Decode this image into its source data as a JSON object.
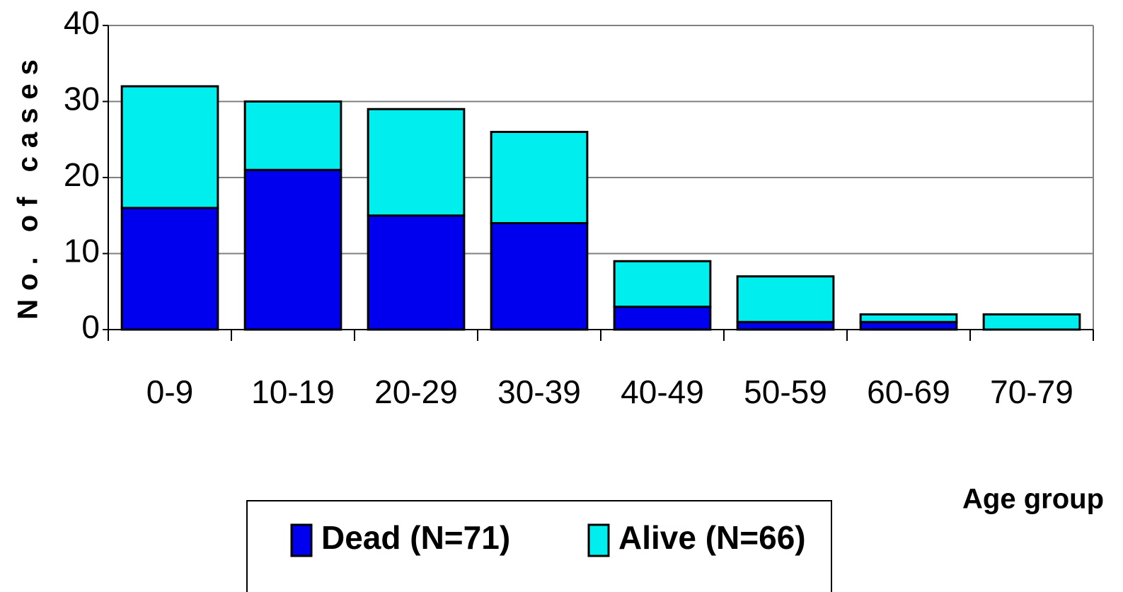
{
  "chart_data": {
    "type": "stacked_bar",
    "y_label": "No. of cases",
    "x_label": "Age group",
    "categories": [
      "0-9",
      "10-19",
      "20-29",
      "30-39",
      "40-49",
      "50-59",
      "60-69",
      "70-79"
    ],
    "series": [
      {
        "name": "Dead (N=71)",
        "color": "#0000ee",
        "values": [
          16,
          21,
          15,
          14,
          3,
          1,
          1,
          0
        ]
      },
      {
        "name": "Alive (N=66)",
        "color": "#00eeee",
        "values": [
          16,
          9,
          14,
          12,
          6,
          6,
          1,
          2
        ]
      }
    ],
    "ylim": [
      0,
      40
    ],
    "yticks": [
      0,
      10,
      20,
      30,
      40
    ],
    "grid": true
  }
}
